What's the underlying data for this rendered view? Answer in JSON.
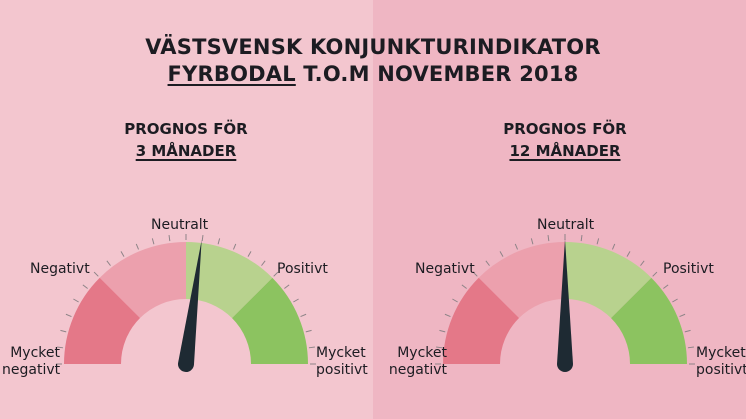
{
  "title": {
    "line1": "VÄSTSVENSK KONJUNKTURINDIKATOR",
    "line2_underlined": "FYRBODAL",
    "line2_rest": " T.O.M NOVEMBER 2018"
  },
  "colors": {
    "bg_left": "#f3c6cf",
    "bg_right": "#efb6c3",
    "very_negative": "#e47888",
    "negative": "#eca0ad",
    "positive": "#b8d28e",
    "very_positive": "#8cc360",
    "needle": "#1e2a33"
  },
  "scale_labels": {
    "neutral": "Neutralt",
    "negative": "Negativt",
    "positive": "Positivt",
    "very_negative_l1": "Mycket",
    "very_negative_l2": "negativt",
    "very_positive_l1": "Mycket",
    "very_positive_l2": "positivt"
  },
  "gauges": [
    {
      "heading_line1": "PROGNOS FÖR",
      "heading_line2": "3 MÅNADER",
      "needle_level": 0.54
    },
    {
      "heading_line1": "PROGNOS FÖR",
      "heading_line2": "12 MÅNADER",
      "needle_level": 0.5
    }
  ]
}
